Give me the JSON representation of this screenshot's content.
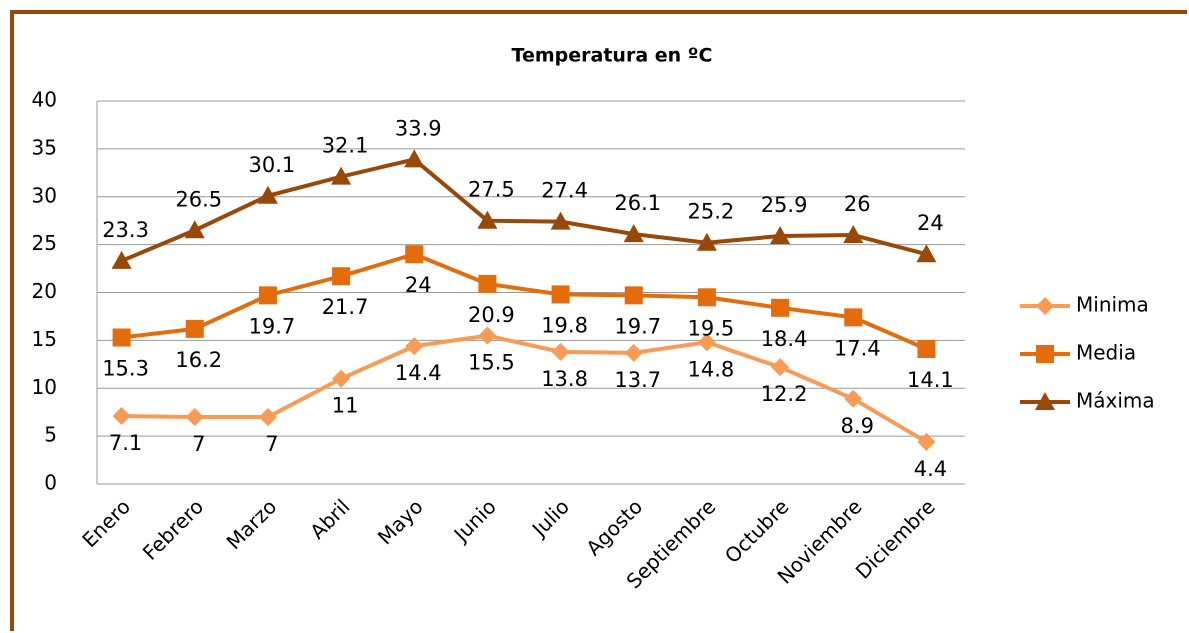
{
  "chart_data": {
    "type": "line",
    "title": "Temperatura en ºC",
    "categories": [
      "Enero",
      "Febrero",
      "Marzo",
      "Abril",
      "Mayo",
      "Junio",
      "Julio",
      "Agosto",
      "Septiembre",
      "Octubre",
      "Noviembre",
      "Diciembre"
    ],
    "series": [
      {
        "name": "Minima",
        "color": "#f79b55",
        "marker": "diamond",
        "values": [
          7.1,
          7,
          7,
          11,
          14.4,
          15.5,
          13.8,
          13.7,
          14.8,
          12.2,
          8.9,
          4.4
        ]
      },
      {
        "name": "Media",
        "color": "#e46c0a",
        "marker": "square",
        "values": [
          15.3,
          16.2,
          19.7,
          21.7,
          24,
          20.9,
          19.8,
          19.7,
          19.5,
          18.4,
          17.4,
          14.1
        ]
      },
      {
        "name": "Máxima",
        "color": "#984807",
        "marker": "triangle",
        "values": [
          23.3,
          26.5,
          30.1,
          32.1,
          33.9,
          27.5,
          27.4,
          26.1,
          25.2,
          25.9,
          26,
          24
        ]
      }
    ],
    "ylim": [
      0,
      40
    ],
    "yticks": [
      0,
      5,
      10,
      15,
      20,
      25,
      30,
      35,
      40
    ],
    "grid": true,
    "legend": "right"
  }
}
